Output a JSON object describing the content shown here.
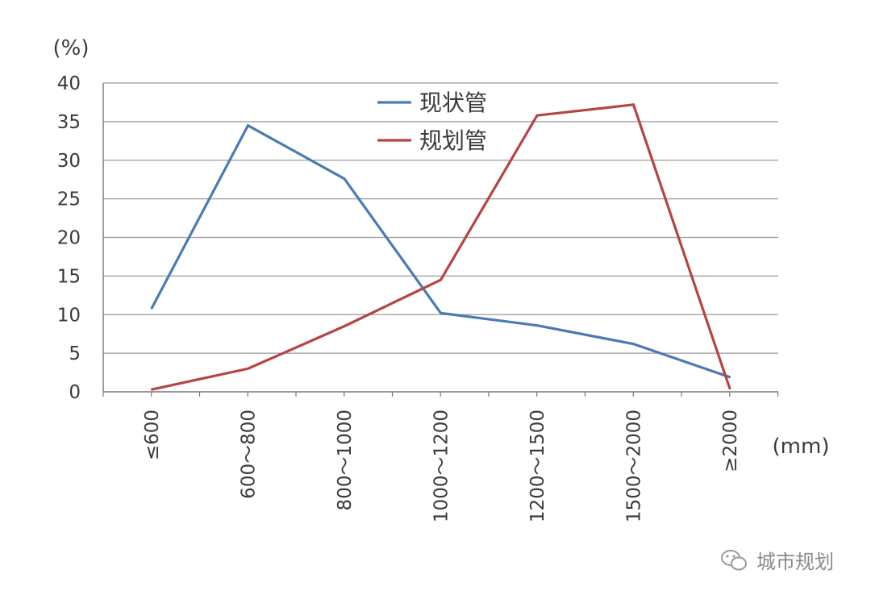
{
  "chart_data": {
    "type": "line",
    "y_unit": "(%)",
    "x_unit": "(mm)",
    "categories": [
      "≤600",
      "600～800",
      "800～1000",
      "1000～1200",
      "1200～1500",
      "1500～2000",
      "≥2000"
    ],
    "series": [
      {
        "name": "现状管",
        "color": "#4a7ab5",
        "values": [
          10.8,
          34.5,
          27.6,
          10.2,
          8.6,
          6.2,
          1.9
        ]
      },
      {
        "name": "规划管",
        "color": "#b54444",
        "values": [
          0.3,
          3.0,
          8.5,
          14.5,
          35.8,
          37.2,
          0.4
        ]
      }
    ],
    "ylim": [
      0,
      40
    ],
    "yticks": [
      0,
      5,
      10,
      15,
      20,
      25,
      30,
      35,
      40
    ],
    "ytick_labels": [
      "0",
      "5",
      "10",
      "15",
      "20",
      "25",
      "30",
      "35",
      "40"
    ],
    "grid": true,
    "legend_position": "top-center"
  },
  "watermark": {
    "text": "城市规划",
    "icon": "wechat-icon"
  }
}
